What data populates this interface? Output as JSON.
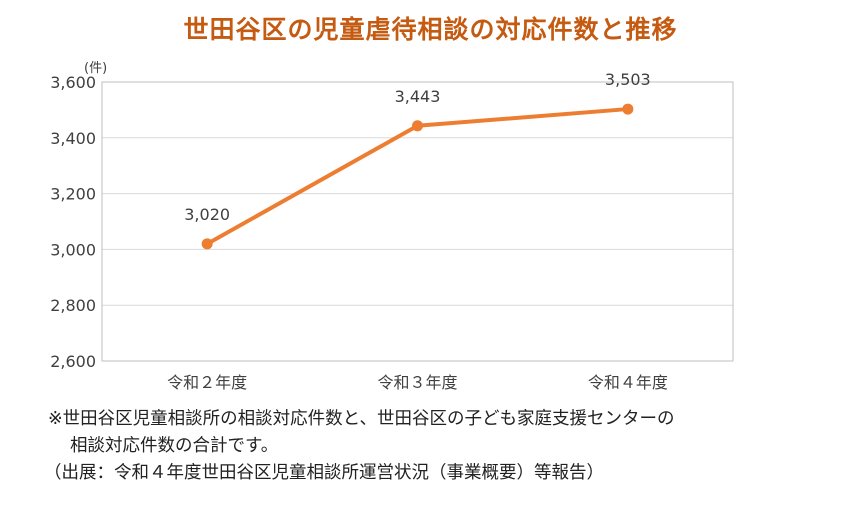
{
  "chart_data": {
    "type": "line",
    "title": "世田谷区の児童虐待相談の対応件数と推移",
    "unit_label": "(件)",
    "categories": [
      "令和２年度",
      "令和３年度",
      "令和４年度"
    ],
    "series": [
      {
        "values": [
          3020,
          3443,
          3503
        ],
        "data_labels": [
          "3,020",
          "3,443",
          "3,503"
        ]
      }
    ],
    "ylim": [
      2600,
      3600
    ],
    "y_ticks": [
      2600,
      2800,
      3000,
      3200,
      3400,
      3600
    ],
    "y_tick_labels": [
      "2,600",
      "2,800",
      "3,000",
      "3,200",
      "3,400",
      "3,600"
    ],
    "grid": true,
    "colors": {
      "title": "#c55a11",
      "line": "#ed7d31",
      "grid": "#d9d9d9",
      "frame": "#bfbfbf",
      "text": "#404040"
    }
  },
  "notes": {
    "line1": "※世田谷区児童相談所の相談対応件数と、世田谷区の子ども家庭支援センターの",
    "line2": "相談対応件数の合計です。",
    "source": "（出展：令和４年度世田谷区児童相談所運営状況（事業概要）等報告）"
  }
}
